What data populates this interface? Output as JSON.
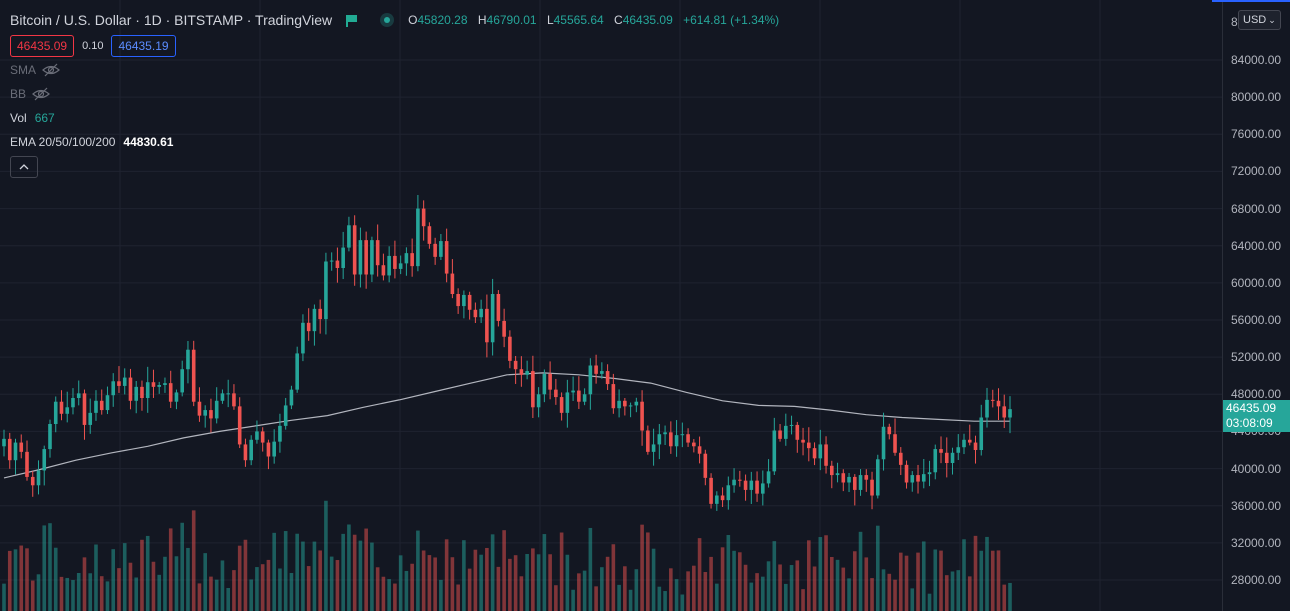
{
  "header": {
    "title": "Bitcoin / U.S. Dollar · 1D · BITSTAMP · TradingView",
    "ohlc": {
      "o_label": "O",
      "o_value": "45820.28",
      "h_label": "H",
      "h_value": "46790.01",
      "l_label": "L",
      "l_value": "45565.64",
      "c_label": "C",
      "c_value": "46435.09",
      "change": "+614.81 (+1.34%)"
    }
  },
  "trade": {
    "sell": "46435.09",
    "spread": "0.10",
    "buy": "46435.19"
  },
  "indicators": {
    "sma": "SMA",
    "bb": "BB",
    "vol_label": "Vol",
    "vol_value": "667",
    "ema_label": "EMA 20/50/100/200",
    "ema_value": "44830.61"
  },
  "price_scale": {
    "currency": "USD",
    "ticks": [
      "84000.00",
      "80000.00",
      "76000.00",
      "72000.00",
      "68000.00",
      "64000.00",
      "60000.00",
      "56000.00",
      "52000.00",
      "48000.00",
      "44000.00",
      "40000.00",
      "36000.00",
      "32000.00",
      "28000.00"
    ],
    "top_tick": "8",
    "current_price": "46435.09",
    "countdown": "03:08:09"
  },
  "colors": {
    "up": "#26a69a",
    "down": "#ef5350",
    "bg": "#131722",
    "grid": "#1f2330",
    "ema": "#b2b5be"
  },
  "icons": {
    "sma_visibility": "eye-crossed-icon",
    "bb_visibility": "eye-crossed-icon",
    "collapse": "chevron-up-icon",
    "flag": "flag-icon",
    "status": "live-dot-icon"
  },
  "chart_data": {
    "type": "candlestick",
    "symbol": "BTCUSD",
    "ylim": [
      26000,
      88000
    ],
    "closes": [
      43200,
      40900,
      42800,
      41800,
      39100,
      38200,
      39800,
      42100,
      44800,
      47200,
      45900,
      46600,
      47600,
      48100,
      44700,
      46000,
      47300,
      46300,
      47900,
      49400,
      48900,
      49800,
      47300,
      48800,
      47600,
      49300,
      48800,
      49000,
      49200,
      47200,
      48200,
      50700,
      52800,
      47200,
      45700,
      46300,
      45400,
      47300,
      48100,
      48100,
      46700,
      42600,
      40900,
      43100,
      44000,
      42800,
      41300,
      42900,
      44600,
      46800,
      48500,
      52400,
      55700,
      54800,
      57200,
      56100,
      62300,
      62400,
      61600,
      63800,
      66200,
      60900,
      64600,
      60900,
      64600,
      61900,
      60800,
      62900,
      61500,
      62100,
      63200,
      61800,
      68000,
      66100,
      64200,
      62800,
      64500,
      61000,
      58800,
      57500,
      58700,
      57100,
      56300,
      57200,
      53600,
      58800,
      55900,
      54200,
      51600,
      50700,
      50100,
      50500,
      46600,
      48000,
      50200,
      48500,
      47700,
      46000,
      48200,
      48400,
      47200,
      48000,
      51100,
      50200,
      50500,
      49100,
      46500,
      47300,
      46700,
      46800,
      47200,
      44100,
      41800,
      42600,
      43700,
      43900,
      42400,
      43600,
      43700,
      42800,
      42400,
      41600,
      39000,
      36200,
      37100,
      36600,
      38200,
      38800,
      38700,
      37700,
      38700,
      37300,
      38400,
      39700,
      44100,
      43200,
      44600,
      44700,
      43100,
      42800,
      42200,
      41100,
      42600,
      40300,
      39300,
      39500,
      38500,
      39100,
      37700,
      39300,
      38800,
      37100,
      41000,
      44500,
      43700,
      41700,
      40400,
      38500,
      39300,
      38600,
      39400,
      39600,
      42100,
      41700,
      40600,
      41700,
      42300,
      43100,
      42800,
      42000,
      45500,
      47400,
      47300,
      46700,
      45500,
      46400
    ],
    "ema": [
      39000,
      39900,
      40900,
      41700,
      42400,
      43300,
      44000,
      44600,
      45200,
      45700,
      46600,
      47400,
      48300,
      49200,
      50100,
      50300,
      50100,
      49700,
      49200,
      48200,
      47300,
      46800,
      46700,
      46300,
      45800,
      45500,
      45300,
      45100,
      45100
    ]
  }
}
